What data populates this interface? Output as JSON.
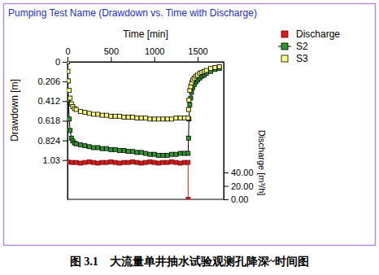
{
  "chart_data": {
    "type": "line",
    "title": "Pumping Test Name (Drawdown vs. Time with Discharge)",
    "xlabel": "Time [min]",
    "ylabel": "Drawdown [m]",
    "y2label": "Discharge [m³/h]",
    "caption": "图 3.1　大流量单井抽水试验观测孔降深~时间图",
    "xlim": [
      0,
      1800
    ],
    "xticks": [
      0,
      500,
      1000,
      1500
    ],
    "ylim": [
      1.442,
      0
    ],
    "yticks": [
      0,
      0.206,
      0.412,
      0.618,
      0.824,
      1.03
    ],
    "y2lim": [
      0,
      205
    ],
    "y2ticks": [
      {
        "value": 0,
        "label": "0.00"
      },
      {
        "value": 20,
        "label": "20.00"
      },
      {
        "value": 40,
        "label": "40.00"
      }
    ],
    "legend": "top-right",
    "series": [
      {
        "name": "Discharge",
        "color": "#cc1f1f",
        "axis": "y2",
        "marker": "square",
        "line_style": "solid",
        "x": [
          0,
          50,
          100,
          150,
          200,
          250,
          300,
          350,
          400,
          450,
          500,
          550,
          600,
          650,
          700,
          750,
          800,
          850,
          900,
          950,
          1000,
          1050,
          1100,
          1150,
          1200,
          1250,
          1300,
          1350,
          1390,
          1391
        ],
        "values": [
          56,
          55,
          55,
          54,
          55,
          56,
          55,
          54,
          55,
          55,
          56,
          55,
          54,
          55,
          55,
          56,
          55,
          54,
          55,
          56,
          55,
          54,
          55,
          55,
          56,
          55,
          54,
          55,
          55,
          0
        ]
      },
      {
        "name": "S2",
        "color": "#2e9a2e",
        "marker": "square",
        "line_style": "solid",
        "x": [
          0,
          5,
          10,
          20,
          30,
          45,
          60,
          80,
          100,
          150,
          200,
          250,
          300,
          350,
          400,
          450,
          500,
          550,
          600,
          650,
          700,
          750,
          800,
          850,
          900,
          950,
          1000,
          1050,
          1100,
          1150,
          1200,
          1250,
          1300,
          1350,
          1390,
          1395,
          1400,
          1410,
          1420,
          1430,
          1445,
          1460,
          1480,
          1500,
          1525,
          1550,
          1575,
          1600,
          1650,
          1700,
          1750
        ],
        "values": [
          0,
          0.2,
          0.4,
          0.6,
          0.72,
          0.8,
          0.83,
          0.85,
          0.86,
          0.87,
          0.88,
          0.89,
          0.9,
          0.9,
          0.91,
          0.91,
          0.92,
          0.92,
          0.93,
          0.93,
          0.94,
          0.94,
          0.95,
          0.95,
          0.96,
          0.97,
          0.97,
          0.98,
          0.98,
          0.98,
          0.97,
          0.97,
          0.96,
          0.96,
          0.96,
          0.8,
          0.6,
          0.45,
          0.38,
          0.32,
          0.27,
          0.24,
          0.21,
          0.19,
          0.17,
          0.15,
          0.14,
          0.12,
          0.1,
          0.08,
          0.07
        ]
      },
      {
        "name": "S3",
        "color": "#ffff80",
        "marker": "square",
        "line_style": "none",
        "x": [
          0,
          5,
          10,
          20,
          30,
          45,
          60,
          80,
          100,
          150,
          200,
          250,
          300,
          350,
          400,
          450,
          500,
          550,
          600,
          650,
          700,
          750,
          800,
          850,
          900,
          950,
          1000,
          1050,
          1100,
          1150,
          1200,
          1250,
          1300,
          1350,
          1390,
          1395,
          1400,
          1410,
          1420,
          1430,
          1445,
          1460,
          1480,
          1500,
          1525,
          1550,
          1575,
          1600,
          1650,
          1700,
          1750
        ],
        "values": [
          0,
          0.1,
          0.2,
          0.3,
          0.38,
          0.44,
          0.47,
          0.49,
          0.5,
          0.52,
          0.53,
          0.54,
          0.55,
          0.55,
          0.56,
          0.56,
          0.57,
          0.57,
          0.57,
          0.58,
          0.58,
          0.58,
          0.59,
          0.59,
          0.59,
          0.6,
          0.6,
          0.6,
          0.6,
          0.6,
          0.6,
          0.59,
          0.59,
          0.59,
          0.59,
          0.5,
          0.4,
          0.3,
          0.26,
          0.22,
          0.19,
          0.17,
          0.15,
          0.14,
          0.12,
          0.11,
          0.1,
          0.09,
          0.07,
          0.06,
          0.05
        ]
      }
    ]
  }
}
